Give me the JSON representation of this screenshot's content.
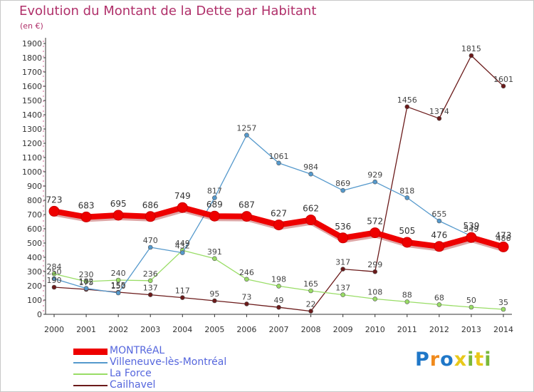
{
  "chart_data": {
    "type": "line",
    "title": "Evolution du Montant de la Dette par Habitant",
    "subtitle": "(en €)",
    "xlabel": "",
    "ylabel": "",
    "x": [
      2000,
      2001,
      2002,
      2003,
      2004,
      2005,
      2006,
      2007,
      2008,
      2009,
      2010,
      2011,
      2012,
      2013,
      2014
    ],
    "ylim": [
      0,
      1900
    ],
    "yticks": [
      0,
      100,
      200,
      300,
      400,
      500,
      600,
      700,
      800,
      900,
      1000,
      1100,
      1200,
      1300,
      1400,
      1500,
      1600,
      1700,
      1800,
      1900
    ],
    "grid": false,
    "legend_position": "bottom-left",
    "series": [
      {
        "name": "Cailhavel",
        "color": "#6b1a1a",
        "values": [
          190,
          175,
          155,
          137,
          117,
          95,
          73,
          49,
          22,
          317,
          299,
          1456,
          1374,
          1815,
          1601
        ]
      },
      {
        "name": "La Force",
        "color": "#99dd66",
        "values": [
          284,
          230,
          240,
          236,
          449,
          391,
          246,
          198,
          165,
          137,
          108,
          88,
          68,
          50,
          35
        ]
      },
      {
        "name": "Villeneuve-lès-Montréal",
        "color": "#5599cc",
        "values": [
          250,
          182,
          150,
          470,
          432,
          817,
          1257,
          1061,
          984,
          869,
          929,
          818,
          655,
          549,
          486
        ]
      },
      {
        "name": "MONTRéAL",
        "color": "#ee0000",
        "values": [
          723,
          683,
          695,
          686,
          749,
          689,
          687,
          627,
          662,
          536,
          572,
          505,
          476,
          539,
          473
        ]
      }
    ],
    "data_labels": [
      "723",
      "683",
      "695",
      "686",
      "749",
      "689",
      "687",
      "627",
      "662",
      "536",
      "572",
      "505",
      "476",
      "539",
      "473",
      "1257",
      "1061",
      "984",
      "869",
      "929",
      "818",
      "655",
      "549",
      "486",
      "817",
      "470",
      "432",
      "284",
      "230",
      "240",
      "236",
      "449",
      "391",
      "246",
      "198",
      "165",
      "137",
      "108",
      "88",
      "68",
      "50",
      "35",
      "250",
      "182",
      "150",
      "190",
      "175",
      "155",
      "137",
      "117",
      "95",
      "73",
      "49",
      "22",
      "317",
      "299",
      "1456",
      "1374",
      "1815",
      "1601"
    ]
  },
  "legend": [
    {
      "label": "MONTRéAL",
      "color": "#ee0000",
      "text_color": "#5566dd"
    },
    {
      "label": "Villeneuve-lès-Montréal",
      "color": "#5599cc",
      "text_color": "#5566dd"
    },
    {
      "label": "La Force",
      "color": "#99dd66",
      "text_color": "#5566dd"
    },
    {
      "label": "Cailhavel",
      "color": "#6b1a1a",
      "text_color": "#5566dd"
    }
  ],
  "logo": {
    "letters": [
      "P",
      "r",
      "o",
      "x",
      "i",
      "t",
      "i"
    ],
    "colors": [
      "#1f77c8",
      "#f08a1c",
      "#1f77c8",
      "#e8c81a",
      "#7ab83a",
      "#e8c81a",
      "#7ab83a"
    ]
  }
}
